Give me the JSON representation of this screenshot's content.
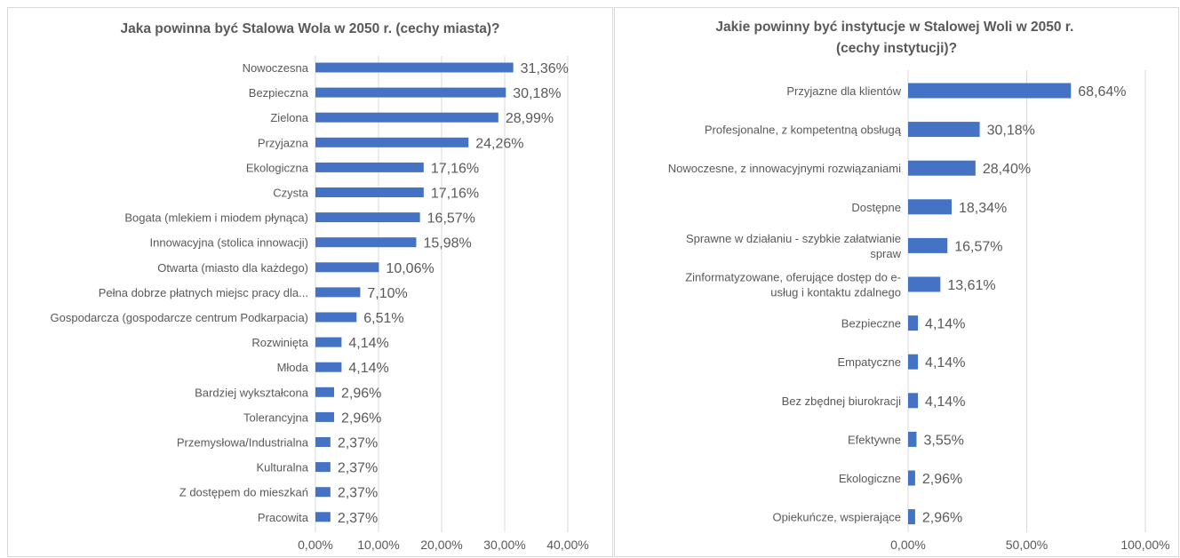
{
  "chart_data": [
    {
      "type": "bar",
      "orientation": "horizontal",
      "title": "Jaka powinna być Stalowa Wola w 2050 r. (cechy miasta)?",
      "categories": [
        "Nowoczesna",
        "Bezpieczna",
        "Zielona",
        "Przyjazna",
        "Ekologiczna",
        "Czysta",
        "Bogata (mlekiem i miodem płynąca)",
        "Innowacyjna (stolica innowacji)",
        "Otwarta (miasto dla każdego)",
        "Pełna dobrze płatnych miejsc pracy dla...",
        "Gospodarcza (gospodarcze centrum Podkarpacia)",
        "Rozwinięta",
        "Młoda",
        "Bardziej wykształcona",
        "Tolerancyjna",
        "Przemysłowa/Industrialna",
        "Kulturalna",
        "Z dostępem do mieszkań",
        "Pracowita"
      ],
      "values": [
        31.36,
        30.18,
        28.99,
        24.26,
        17.16,
        17.16,
        16.57,
        15.98,
        10.06,
        7.1,
        6.51,
        4.14,
        4.14,
        2.96,
        2.96,
        2.37,
        2.37,
        2.37,
        2.37
      ],
      "value_labels": [
        "31,36%",
        "30,18%",
        "28,99%",
        "24,26%",
        "17,16%",
        "17,16%",
        "16,57%",
        "15,98%",
        "10,06%",
        "7,10%",
        "6,51%",
        "4,14%",
        "4,14%",
        "2,96%",
        "2,96%",
        "2,37%",
        "2,37%",
        "2,37%",
        "2,37%"
      ],
      "xlim": [
        0,
        40
      ],
      "xticks": [
        0,
        10,
        20,
        30,
        40
      ],
      "xtick_labels": [
        "0,00%",
        "10,00%",
        "20,00%",
        "30,00%",
        "40,00%"
      ],
      "grid": true,
      "bar_color": "#4472c4"
    },
    {
      "type": "bar",
      "orientation": "horizontal",
      "title": "Jakie powinny być instytucje w Stalowej Woli w 2050 r. (cechy instytucji)?",
      "categories": [
        [
          "Przyjazne dla klientów"
        ],
        [
          "Profesjonalne, z kompetentną obsługą"
        ],
        [
          "Nowoczesne, z innowacyjnymi rozwiązaniami"
        ],
        [
          "Dostępne"
        ],
        [
          "Sprawne w działaniu - szybkie załatwianie",
          "spraw"
        ],
        [
          "Zinformatyzowane, oferujące dostęp do e-",
          "usług i kontaktu zdalnego"
        ],
        [
          "Bezpieczne"
        ],
        [
          "Empatyczne"
        ],
        [
          "Bez zbędnej biurokracji"
        ],
        [
          "Efektywne"
        ],
        [
          "Ekologiczne"
        ],
        [
          "Opiekuńcze, wspierające"
        ]
      ],
      "values": [
        68.64,
        30.18,
        28.4,
        18.34,
        16.57,
        13.61,
        4.14,
        4.14,
        4.14,
        3.55,
        2.96,
        2.96
      ],
      "value_labels": [
        "68,64%",
        "30,18%",
        "28,40%",
        "18,34%",
        "16,57%",
        "13,61%",
        "4,14%",
        "4,14%",
        "4,14%",
        "3,55%",
        "2,96%",
        "2,96%"
      ],
      "xlim": [
        0,
        100
      ],
      "xticks": [
        0,
        50,
        100
      ],
      "xtick_labels": [
        "0,00%",
        "50,00%",
        "100,00%"
      ],
      "grid": true,
      "bar_color": "#4472c4"
    }
  ],
  "colors": {
    "bar": "#4472c4",
    "grid": "#d9d9d9",
    "text": "#595959",
    "title": "#595959"
  }
}
